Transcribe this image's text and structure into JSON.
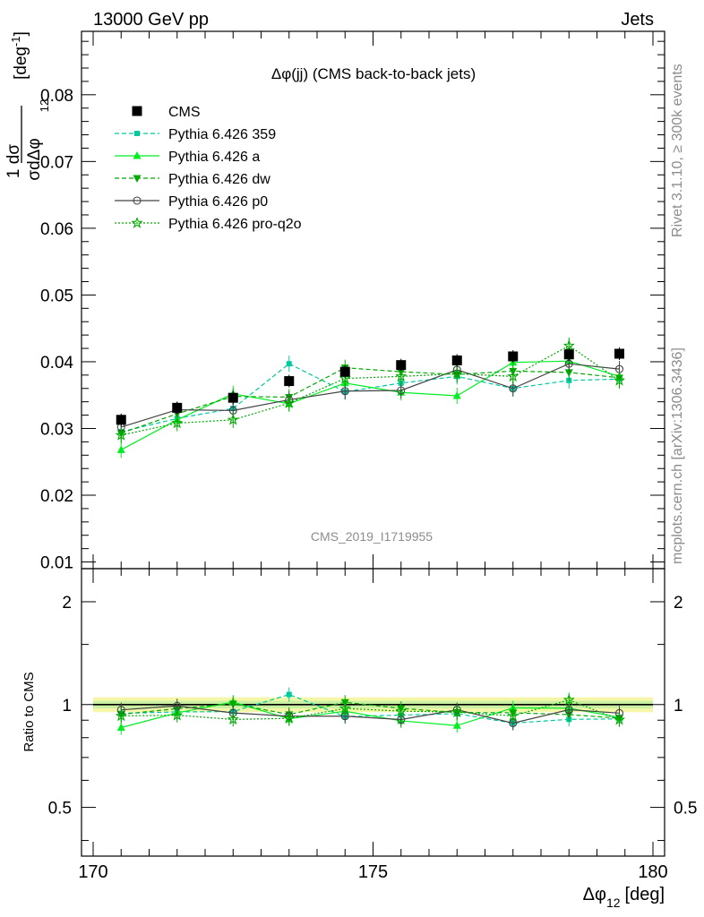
{
  "header": {
    "left": "13000 GeV pp",
    "right": "Jets"
  },
  "side_text": {
    "rivet": "Rivet 3.1.10, ≥ 300k events",
    "mcplots": "mcplots.cern.ch [arXiv:1306.3436]"
  },
  "chart_data": {
    "type": "line",
    "title": "Δφ(jj) (CMS back-to-back jets)",
    "watermark": "CMS_2019_I1719955",
    "xlabel": "Δφ",
    "xlabel_sub": "12",
    "xlabel_unit": "[deg]",
    "ylabel_main": "1/σ dσ/dΔφ_12 [deg⁻¹]",
    "ylabel_ratio": "Ratio to CMS",
    "xlim": [
      170,
      180
    ],
    "ylim": [
      0.009,
      0.0895
    ],
    "ratio_ylim": [
      0.36,
      2.5
    ],
    "x_ticks": [
      "170",
      "175",
      "180"
    ],
    "y_ticks": [
      "0.01",
      "0.02",
      "0.03",
      "0.04",
      "0.05",
      "0.06",
      "0.07",
      "0.08"
    ],
    "ratio_ticks": [
      "0.5",
      "1",
      "2"
    ],
    "x": [
      170.5,
      171.5,
      172.5,
      173.5,
      174.5,
      175.5,
      176.5,
      177.5,
      178.5,
      179.4
    ],
    "series": [
      {
        "name": "CMS",
        "style": "data",
        "color": "#000000",
        "marker": "square",
        "values": [
          0.0313,
          0.0331,
          0.0346,
          0.0371,
          0.0385,
          0.0395,
          0.0402,
          0.0408,
          0.0411,
          0.0412
        ]
      },
      {
        "name": "Pythia 6.426 359",
        "style": "dashed",
        "color": "#00c9a0",
        "marker": "square-small",
        "values": [
          0.0295,
          0.0315,
          0.033,
          0.0397,
          0.0355,
          0.0368,
          0.0378,
          0.036,
          0.0372,
          0.0374
        ]
      },
      {
        "name": "Pythia 6.426 a",
        "style": "solid",
        "color": "#00ee22",
        "marker": "triangle-up",
        "values": [
          0.0268,
          0.0313,
          0.0352,
          0.0337,
          0.0368,
          0.0354,
          0.0349,
          0.0399,
          0.0401,
          0.0378
        ]
      },
      {
        "name": "Pythia 6.426 dw",
        "style": "dashed",
        "color": "#00aa00",
        "marker": "triangle-down",
        "values": [
          0.0293,
          0.0322,
          0.0348,
          0.0347,
          0.0391,
          0.0385,
          0.0381,
          0.0386,
          0.0384,
          0.0376
        ]
      },
      {
        "name": "Pythia 6.426 p0",
        "style": "solid",
        "color": "#444444",
        "marker": "circle-open",
        "values": [
          0.0302,
          0.0328,
          0.0327,
          0.0343,
          0.0356,
          0.0357,
          0.0388,
          0.036,
          0.0397,
          0.0389
        ]
      },
      {
        "name": "Pythia 6.426 pro-q2o",
        "style": "dotted",
        "color": "#00aa00",
        "marker": "star-open",
        "values": [
          0.029,
          0.0308,
          0.0313,
          0.0338,
          0.0375,
          0.0378,
          0.0382,
          0.0378,
          0.0424,
          0.0372
        ]
      }
    ]
  }
}
